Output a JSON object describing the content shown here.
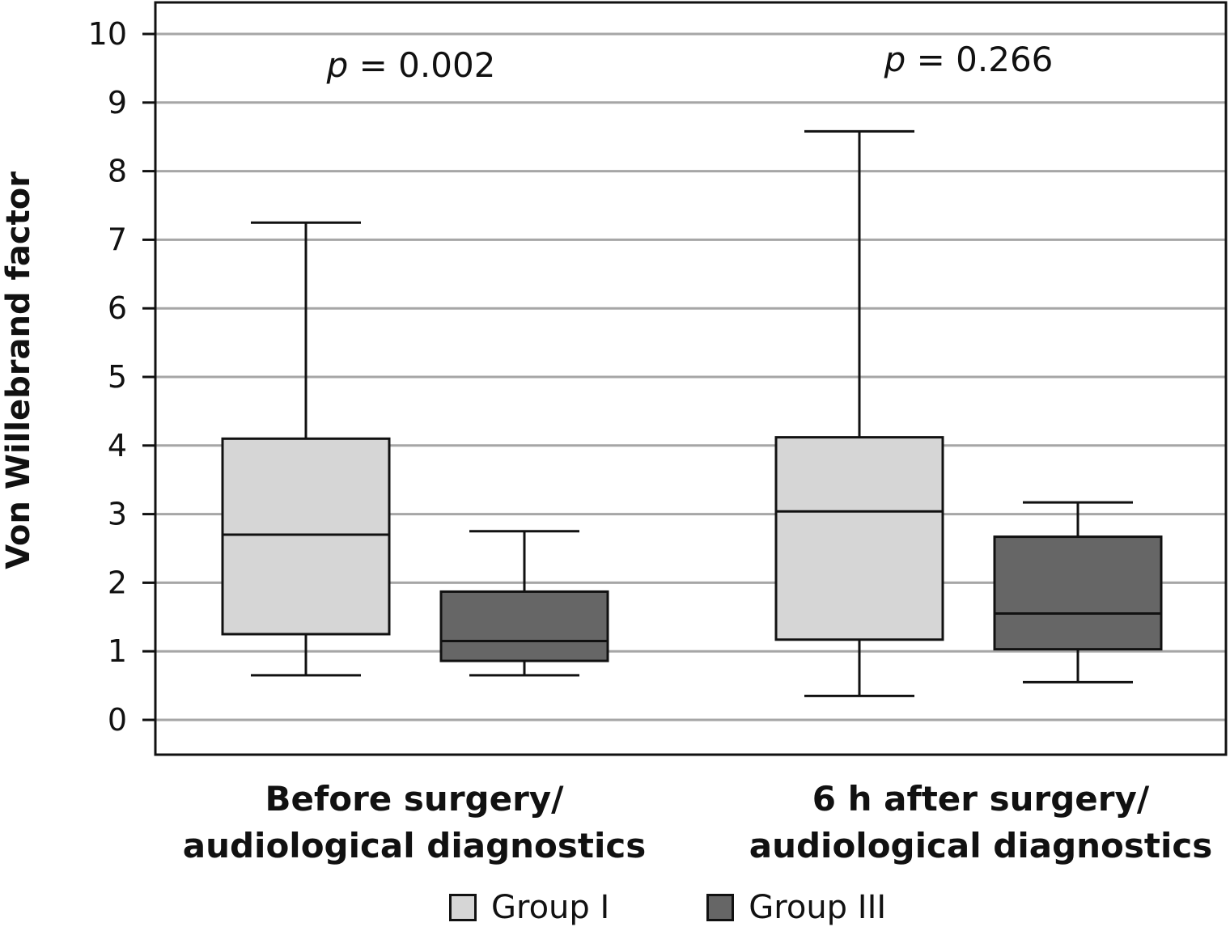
{
  "chart_data": {
    "type": "boxplot",
    "title": "",
    "xlabel": "",
    "ylabel": "Von Willebrand factor",
    "ylim": [
      -0.5,
      10.5
    ],
    "yticks": [
      0,
      1,
      2,
      3,
      4,
      5,
      6,
      7,
      8,
      9,
      10
    ],
    "grid": true,
    "legend_position": "bottom",
    "categories": [
      [
        "Before surgery/",
        "audiological diagnostics"
      ],
      [
        "6 h after surgery/",
        "audiological diagnostics"
      ]
    ],
    "series": [
      {
        "name": "Group I",
        "color": "#d6d6d6",
        "boxes": [
          {
            "whisker_low": 0.65,
            "q1": 1.25,
            "median": 2.7,
            "q3": 4.1,
            "whisker_high": 7.25
          },
          {
            "whisker_low": 0.35,
            "q1": 1.17,
            "median": 3.04,
            "q3": 4.12,
            "whisker_high": 8.58
          }
        ]
      },
      {
        "name": "Group III",
        "color": "#666666",
        "boxes": [
          {
            "whisker_low": 0.65,
            "q1": 0.86,
            "median": 1.15,
            "q3": 1.87,
            "whisker_high": 2.75
          },
          {
            "whisker_low": 0.55,
            "q1": 1.03,
            "median": 1.55,
            "q3": 2.67,
            "whisker_high": 3.17
          }
        ]
      }
    ],
    "annotations": [
      {
        "italic": "p",
        "rest": " = 0.002"
      },
      {
        "italic": "p",
        "rest": " = 0.266"
      }
    ]
  }
}
